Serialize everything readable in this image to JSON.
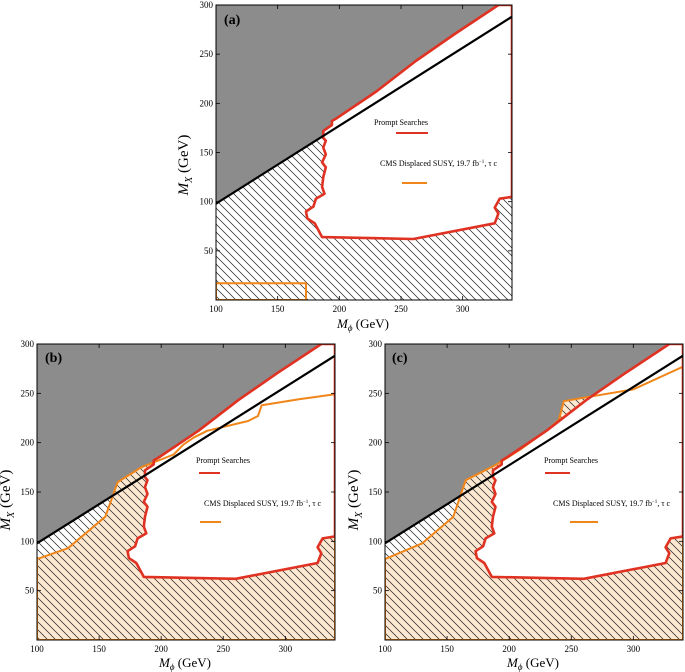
{
  "figure": {
    "panels": [
      "a",
      "b",
      "c"
    ]
  },
  "colors": {
    "excluded_gray": "#8c8c8c",
    "prompt_red": "#e03222",
    "displaced_orange": "#f0861a",
    "displaced_fill": "#fde8d2",
    "hatch": "#222222",
    "diagonal": "#000000"
  },
  "chart_data": [
    {
      "type": "area",
      "panel_label": "(a)",
      "xlabel_main": "M",
      "xlabel_sub": "ϕ",
      "xlabel_unit": " (GeV)",
      "ylabel_main": "M",
      "ylabel_sub": "X",
      "ylabel_unit": " (GeV)",
      "xlim": [
        100,
        340
      ],
      "ylim": [
        0,
        300
      ],
      "xticks": [
        100,
        150,
        200,
        250,
        300
      ],
      "yticks": [
        50,
        100,
        150,
        200,
        250,
        300
      ],
      "diagonal": [
        [
          100,
          98
        ],
        [
          355,
          300
        ]
      ],
      "legend": {
        "prompt_label": "Prompt Searches",
        "displaced_label": "CMS Displaced SUSY, 19.7 fb",
        "displaced_sup": "−1",
        "displaced_suffix": ", τ c"
      },
      "prompt_region": [
        [
          338,
          300
        ],
        [
          329,
          300
        ],
        [
          293,
          270
        ],
        [
          262,
          243
        ],
        [
          230,
          212
        ],
        [
          198,
          185
        ],
        [
          194,
          182
        ],
        [
          194,
          178
        ],
        [
          187,
          172
        ],
        [
          187,
          165
        ],
        [
          189,
          162
        ],
        [
          187,
          155
        ],
        [
          189,
          148
        ],
        [
          186,
          140
        ],
        [
          189,
          135
        ],
        [
          187,
          125
        ],
        [
          186,
          115
        ],
        [
          188,
          108
        ],
        [
          181,
          103
        ],
        [
          179,
          95
        ],
        [
          173,
          90
        ],
        [
          174,
          83
        ],
        [
          180,
          78
        ],
        [
          186,
          64
        ],
        [
          260,
          62
        ],
        [
          326,
          78
        ],
        [
          329,
          88
        ],
        [
          326,
          94
        ],
        [
          330,
          103
        ],
        [
          340,
          105
        ],
        [
          340,
          300
        ]
      ],
      "displaced_region": [
        [
          100,
          17
        ],
        [
          173,
          17
        ],
        [
          173,
          0
        ],
        [
          100,
          0
        ]
      ],
      "show_displaced_fill": false
    },
    {
      "type": "area",
      "panel_label": "(b)",
      "xlabel_main": "M",
      "xlabel_sub": "ϕ",
      "xlabel_unit": " (GeV)",
      "ylabel_main": "M",
      "ylabel_sub": "X",
      "ylabel_unit": " (GeV)",
      "xlim": [
        100,
        340
      ],
      "ylim": [
        0,
        300
      ],
      "xticks": [
        100,
        150,
        200,
        250,
        300
      ],
      "yticks": [
        50,
        100,
        150,
        200,
        250,
        300
      ],
      "diagonal": [
        [
          100,
          98
        ],
        [
          355,
          300
        ]
      ],
      "legend": {
        "prompt_label": "Prompt Searches",
        "displaced_label": "CMS Displaced SUSY, 19.7 fb",
        "displaced_sup": "−1",
        "displaced_suffix": ", τ c"
      },
      "prompt_region": [
        [
          338,
          300
        ],
        [
          329,
          300
        ],
        [
          293,
          270
        ],
        [
          262,
          243
        ],
        [
          230,
          212
        ],
        [
          198,
          185
        ],
        [
          194,
          182
        ],
        [
          194,
          178
        ],
        [
          187,
          172
        ],
        [
          187,
          165
        ],
        [
          189,
          162
        ],
        [
          187,
          155
        ],
        [
          189,
          148
        ],
        [
          186,
          140
        ],
        [
          189,
          135
        ],
        [
          187,
          125
        ],
        [
          186,
          115
        ],
        [
          188,
          108
        ],
        [
          181,
          103
        ],
        [
          179,
          95
        ],
        [
          173,
          90
        ],
        [
          174,
          83
        ],
        [
          180,
          78
        ],
        [
          186,
          64
        ],
        [
          260,
          62
        ],
        [
          326,
          78
        ],
        [
          329,
          88
        ],
        [
          326,
          94
        ],
        [
          330,
          103
        ],
        [
          340,
          105
        ],
        [
          340,
          300
        ]
      ],
      "displaced_region": [
        [
          100,
          82
        ],
        [
          125,
          93
        ],
        [
          155,
          125
        ],
        [
          165,
          160
        ],
        [
          184,
          175
        ],
        [
          210,
          188
        ],
        [
          218,
          198
        ],
        [
          226,
          205
        ],
        [
          237,
          212
        ],
        [
          270,
          222
        ],
        [
          278,
          227
        ],
        [
          281,
          238
        ],
        [
          311,
          244
        ],
        [
          340,
          249
        ],
        [
          340,
          0
        ],
        [
          100,
          0
        ]
      ],
      "show_displaced_fill": true
    },
    {
      "type": "area",
      "panel_label": "(c)",
      "xlabel_main": "M",
      "xlabel_sub": "ϕ",
      "xlabel_unit": " (GeV)",
      "ylabel_main": "M",
      "ylabel_sub": "X",
      "ylabel_unit": " (GeV)",
      "xlim": [
        100,
        340
      ],
      "ylim": [
        0,
        300
      ],
      "xticks": [
        100,
        150,
        200,
        250,
        300
      ],
      "yticks": [
        50,
        100,
        150,
        200,
        250,
        300
      ],
      "diagonal": [
        [
          100,
          98
        ],
        [
          355,
          300
        ]
      ],
      "legend": {
        "prompt_label": "Prompt Searches",
        "displaced_label": "CMS Displaced SUSY, 19.7 fb",
        "displaced_sup": "−1",
        "displaced_suffix": ", τ c"
      },
      "prompt_region": [
        [
          338,
          300
        ],
        [
          329,
          300
        ],
        [
          293,
          270
        ],
        [
          262,
          243
        ],
        [
          230,
          212
        ],
        [
          198,
          185
        ],
        [
          194,
          182
        ],
        [
          194,
          178
        ],
        [
          187,
          172
        ],
        [
          187,
          165
        ],
        [
          189,
          162
        ],
        [
          187,
          155
        ],
        [
          189,
          148
        ],
        [
          186,
          140
        ],
        [
          189,
          135
        ],
        [
          187,
          125
        ],
        [
          186,
          115
        ],
        [
          188,
          108
        ],
        [
          181,
          103
        ],
        [
          179,
          95
        ],
        [
          173,
          90
        ],
        [
          174,
          83
        ],
        [
          180,
          78
        ],
        [
          186,
          64
        ],
        [
          260,
          62
        ],
        [
          326,
          78
        ],
        [
          329,
          88
        ],
        [
          326,
          94
        ],
        [
          330,
          103
        ],
        [
          340,
          105
        ],
        [
          340,
          300
        ]
      ],
      "displaced_region": [
        [
          100,
          82
        ],
        [
          130,
          98
        ],
        [
          155,
          125
        ],
        [
          165,
          162
        ],
        [
          190,
          178
        ],
        [
          210,
          194
        ],
        [
          230,
          212
        ],
        [
          240,
          223
        ],
        [
          244,
          242
        ],
        [
          262,
          246
        ],
        [
          300,
          254
        ],
        [
          340,
          277
        ],
        [
          340,
          0
        ],
        [
          100,
          0
        ]
      ],
      "show_displaced_fill": true
    }
  ]
}
